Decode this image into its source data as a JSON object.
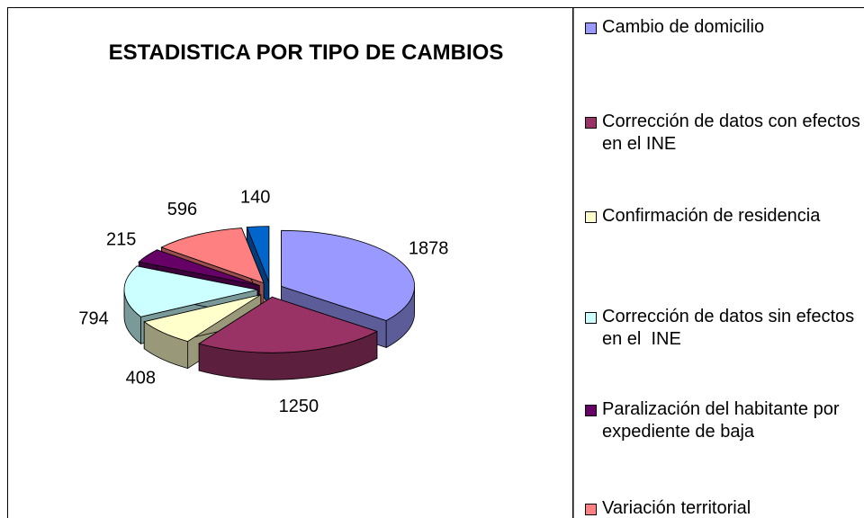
{
  "chart_data": {
    "type": "pie3d",
    "title": "ESTADISTICA POR TIPO DE CAMBIOS",
    "categories": [
      "Cambio de domicilio",
      "Corrección de datos con efectos en el INE",
      "Confirmación de residencia",
      "Corrección de datos sin efectos en el  INE",
      "Paralización del habitante por expediente de baja",
      "Variación territorial",
      null
    ],
    "values": [
      1878,
      1250,
      408,
      794,
      215,
      596,
      140
    ],
    "colors": [
      "#9999ff",
      "#993366",
      "#ffffcc",
      "#ccffff",
      "#660066",
      "#ff8080",
      "#0066cc"
    ],
    "legend": "right"
  }
}
